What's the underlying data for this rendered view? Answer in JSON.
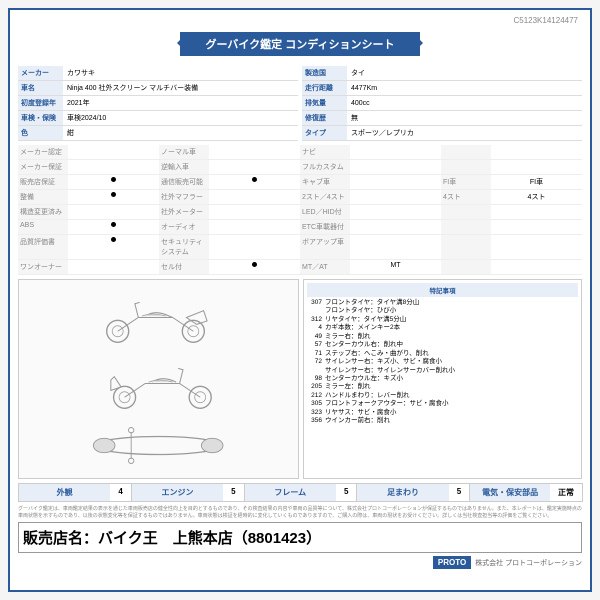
{
  "docId": "C5123K14124477",
  "title": "グーバイク鑑定 コンディションシート",
  "specsL": [
    {
      "label": "メーカー",
      "value": "カワサキ"
    },
    {
      "label": "車名",
      "value": "Ninja 400 社外スクリーン マルチバー装備"
    },
    {
      "label": "初度登録年",
      "value": "2021年"
    },
    {
      "label": "車検・保険",
      "value": "車検2024/10"
    },
    {
      "label": "色",
      "value": "紺"
    }
  ],
  "specsR": [
    {
      "label": "製造国",
      "value": "タイ"
    },
    {
      "label": "走行距離",
      "value": "4477Km"
    },
    {
      "label": "排気量",
      "value": "400cc"
    },
    {
      "label": "修復歴",
      "value": "無"
    },
    {
      "label": "タイプ",
      "value": "スポーツ／レプリカ"
    }
  ],
  "features": [
    {
      "label": "メーカー認定",
      "value": ""
    },
    {
      "label": "ノーマル車",
      "value": ""
    },
    {
      "label": "ナビ",
      "value": ""
    },
    {
      "label": "",
      "value": ""
    },
    {
      "label": "メーカー保証",
      "value": ""
    },
    {
      "label": "逆輸入車",
      "value": ""
    },
    {
      "label": "フルカスタム",
      "value": ""
    },
    {
      "label": "",
      "value": ""
    },
    {
      "label": "販売店保証",
      "value": "●"
    },
    {
      "label": "通信販売可能",
      "value": "●"
    },
    {
      "label": "キャブ車",
      "value": ""
    },
    {
      "label": "FI車",
      "value": "FI車"
    },
    {
      "label": "整備",
      "value": "●"
    },
    {
      "label": "社外マフラー",
      "value": ""
    },
    {
      "label": "2スト／4スト",
      "value": ""
    },
    {
      "label": "4スト",
      "value": "4スト"
    },
    {
      "label": "構造変更済み",
      "value": ""
    },
    {
      "label": "社外メーター",
      "value": ""
    },
    {
      "label": "LED／HID付",
      "value": ""
    },
    {
      "label": "",
      "value": ""
    },
    {
      "label": "ABS",
      "value": "●"
    },
    {
      "label": "オーディオ",
      "value": ""
    },
    {
      "label": "ETC車載器付",
      "value": ""
    },
    {
      "label": "",
      "value": ""
    },
    {
      "label": "品質評価書",
      "value": "●"
    },
    {
      "label": "セキュリティシステム",
      "value": ""
    },
    {
      "label": "ボアアップ車",
      "value": ""
    },
    {
      "label": "",
      "value": ""
    },
    {
      "label": "ワンオーナー",
      "value": ""
    },
    {
      "label": "セル付",
      "value": "●"
    },
    {
      "label": "MT／AT",
      "value": "MT"
    },
    {
      "label": "",
      "value": ""
    }
  ],
  "notesTitle": "特記事項",
  "notes": [
    {
      "num": "307",
      "text": "フロントタイヤ：タイヤ溝8分山"
    },
    {
      "num": "",
      "text": "フロントタイヤ：ひび小"
    },
    {
      "num": "312",
      "text": "リヤタイヤ：タイヤ溝5分山"
    },
    {
      "num": "4",
      "text": "カギ本数：メインキー2本"
    },
    {
      "num": "49",
      "text": "ミラー右：削れ"
    },
    {
      "num": "57",
      "text": "センターカウル右：削れ中"
    },
    {
      "num": "71",
      "text": "ステップ右：へこみ・曲がり、削れ"
    },
    {
      "num": "72",
      "text": "サイレンサー右：キズ小、サビ・腐食小"
    },
    {
      "num": "",
      "text": "サイレンサー右：サイレンサーカバー削れ小"
    },
    {
      "num": "98",
      "text": "センターカウル左：キズ小"
    },
    {
      "num": "205",
      "text": "ミラー左：削れ"
    },
    {
      "num": "212",
      "text": "ハンドルまわり：レバー削れ"
    },
    {
      "num": "305",
      "text": "フロントフォークアウター：サビ・腐食小"
    },
    {
      "num": "323",
      "text": "リヤサス：サビ・腐食小"
    },
    {
      "num": "356",
      "text": "ウインカー前右：削れ"
    }
  ],
  "ratings": [
    {
      "label": "外観",
      "value": "4"
    },
    {
      "label": "エンジン",
      "value": "5"
    },
    {
      "label": "フレーム",
      "value": "5"
    },
    {
      "label": "足まわり",
      "value": "5"
    },
    {
      "label": "電気・保安部品",
      "value": "正常"
    }
  ],
  "disclaimer": "グーバイク鑑定は、車両鑑定結果の表示を通じた車両販売店の健全性向上を目的とするものであり、その検査結果の内容や車両の品質等について、株式会社プロトコーポレーションが保証するものではありません。また、本レポートは、鑑定実施時点の車両状態を示すものであり、以後の状態変化等を保証するものではありません。車両状態は検証を経時的に変化していくものでありますので、ご購入の際は、車両の現状をお受けください。詳しくは当社検査担当等の評価をご覧ください。",
  "dealerLabel": "販売店名：",
  "dealerName": "バイク王　上熊本店（8801423）",
  "footerText": "株式会社 プロトコーポレーション",
  "logoText": "PROTO",
  "colors": {
    "primary": "#2a5a9a",
    "labelBg": "#e8eef7"
  }
}
